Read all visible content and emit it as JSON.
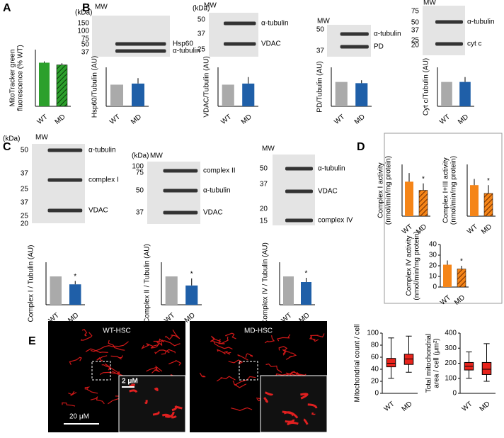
{
  "panel_labels": [
    "A",
    "B",
    "C",
    "D",
    "E"
  ],
  "chart_data": [
    {
      "type": "bar",
      "ylabel": [
        "MitoTracker green",
        "fluorescence (% WT)"
      ],
      "categories": [
        "WT",
        "MD"
      ],
      "values": [
        100,
        95
      ],
      "errors": [
        3,
        4
      ],
      "colors": [
        "#2ca02c",
        "#2ca02c"
      ],
      "hatch": [
        false,
        true
      ],
      "ylim": [
        0,
        130
      ]
    },
    {
      "type": "bar",
      "ylabel": [
        "Hsp60/Tubulin (AU)"
      ],
      "categories": [
        "WT",
        "MD"
      ],
      "values": [
        1,
        1.05
      ],
      "errors": [
        0,
        0.25
      ],
      "colors": [
        "#aaaaaa",
        "#1f5fa8"
      ],
      "hatch": [
        false,
        false
      ],
      "ylim": [
        0,
        1.8
      ]
    },
    {
      "type": "bar",
      "ylabel": [
        "VDAC/Tubulin (AU)"
      ],
      "categories": [
        "WT",
        "MD"
      ],
      "values": [
        1,
        1.05
      ],
      "errors": [
        0,
        0.3
      ],
      "colors": [
        "#aaaaaa",
        "#1f5fa8"
      ],
      "hatch": [
        false,
        false
      ],
      "ylim": [
        0,
        1.8
      ]
    },
    {
      "type": "bar",
      "ylabel": [
        "PD/Tubulin (AU)"
      ],
      "categories": [
        "WT",
        "MD"
      ],
      "values": [
        1,
        0.95
      ],
      "errors": [
        0,
        0.12
      ],
      "colors": [
        "#aaaaaa",
        "#1f5fa8"
      ],
      "hatch": [
        false,
        false
      ],
      "ylim": [
        0,
        1.6
      ]
    },
    {
      "type": "bar",
      "ylabel": [
        "Cyt c/Tubulin (AU)"
      ],
      "categories": [
        "WT",
        "MD"
      ],
      "values": [
        1,
        1.0
      ],
      "errors": [
        0,
        0.2
      ],
      "colors": [
        "#aaaaaa",
        "#1f5fa8"
      ],
      "hatch": [
        false,
        false
      ],
      "ylim": [
        0,
        1.6
      ]
    },
    {
      "type": "bar",
      "ylabel": [
        "Complex I / Tubulin (AU)"
      ],
      "categories": [
        "WT",
        "MD"
      ],
      "values": [
        1,
        0.72
      ],
      "errors": [
        0,
        0.12
      ],
      "colors": [
        "#aaaaaa",
        "#1f5fa8"
      ],
      "hatch": [
        false,
        false
      ],
      "significance": [
        null,
        "*"
      ],
      "ylim": [
        0,
        1.5
      ]
    },
    {
      "type": "bar",
      "ylabel": [
        "Complex II / Tubulin (AU)"
      ],
      "categories": [
        "WT",
        "MD"
      ],
      "values": [
        1,
        0.68
      ],
      "errors": [
        0,
        0.25
      ],
      "colors": [
        "#aaaaaa",
        "#1f5fa8"
      ],
      "hatch": [
        false,
        false
      ],
      "significance": [
        null,
        "*"
      ],
      "ylim": [
        0,
        1.5
      ]
    },
    {
      "type": "bar",
      "ylabel": [
        "Complex IV / Tubulin (AU)"
      ],
      "categories": [
        "WT",
        "MD"
      ],
      "values": [
        1,
        0.8
      ],
      "errors": [
        0,
        0.15
      ],
      "colors": [
        "#aaaaaa",
        "#1f5fa8"
      ],
      "hatch": [
        false,
        false
      ],
      "significance": [
        null,
        "*"
      ],
      "ylim": [
        0,
        1.5
      ]
    },
    {
      "type": "bar",
      "ylabel": [
        "Complex I activity",
        "(nmol/min/mg protein)"
      ],
      "categories": [
        "WT",
        "MD"
      ],
      "values": [
        40,
        30
      ],
      "errors": [
        10,
        8
      ],
      "colors": [
        "#f58518",
        "#f58518"
      ],
      "hatch": [
        false,
        true
      ],
      "significance": [
        null,
        "*"
      ],
      "ylim": [
        0,
        60
      ]
    },
    {
      "type": "bar",
      "ylabel": [
        "Complex I+III activity",
        "(nmol/min/mg protein)"
      ],
      "categories": [
        "WT",
        "MD"
      ],
      "values": [
        15,
        11
      ],
      "errors": [
        3,
        4
      ],
      "colors": [
        "#f58518",
        "#f58518"
      ],
      "hatch": [
        false,
        true
      ],
      "significance": [
        null,
        "*"
      ],
      "ylim": [
        0,
        25
      ]
    },
    {
      "type": "bar",
      "ylabel": [
        "Complex IV activity",
        "(nmol/min/mg protein)"
      ],
      "categories": [
        "WT",
        "MD"
      ],
      "values": [
        21,
        17
      ],
      "errors": [
        4,
        3
      ],
      "colors": [
        "#f58518",
        "#f58518"
      ],
      "hatch": [
        false,
        true
      ],
      "significance": [
        null,
        "*"
      ],
      "ylim": [
        0,
        40
      ],
      "yticks": [
        0,
        10,
        20,
        30,
        40
      ]
    },
    {
      "type": "box",
      "ylabel": [
        "Mitochondrial count / cell"
      ],
      "categories": [
        "WT",
        "MD"
      ],
      "boxes": [
        {
          "whislo": 25,
          "q1": 44,
          "med": 50,
          "q3": 58,
          "whishi": 92
        },
        {
          "whislo": 35,
          "q1": 48,
          "med": 57,
          "q3": 65,
          "whishi": 95
        }
      ],
      "color": "#e8241c",
      "ylim": [
        0,
        100
      ],
      "yticks": [
        0,
        20,
        40,
        60,
        80,
        100
      ]
    },
    {
      "type": "box",
      "ylabel": [
        "Total mitochondrial",
        "area / cell (μm²)"
      ],
      "categories": [
        "WT",
        "MD"
      ],
      "boxes": [
        {
          "whislo": 100,
          "q1": 155,
          "med": 180,
          "q3": 205,
          "whishi": 275
        },
        {
          "whislo": 80,
          "q1": 125,
          "med": 160,
          "q3": 205,
          "whishi": 330
        }
      ],
      "color": "#e8241c",
      "ylim": [
        0,
        400
      ],
      "yticks": [
        0,
        100,
        200,
        300,
        400
      ]
    }
  ],
  "blots": [
    {
      "header": "(kDa)",
      "mw": "MW",
      "markers": [
        "150",
        "100",
        "75",
        "50",
        "37"
      ],
      "bands": [
        "Hsp60",
        "α-tubulin"
      ]
    },
    {
      "header": "(kDa)",
      "mw": "MW",
      "markers": [
        "50",
        "37",
        "25"
      ],
      "bands": [
        "α-tubulin",
        "VDAC"
      ]
    },
    {
      "mw": "MW",
      "markers": [
        "50",
        "37"
      ],
      "bands": [
        "α-tubulin",
        "PD"
      ]
    },
    {
      "mw": "MW",
      "markers": [
        "75",
        "50",
        "37",
        "25",
        "20"
      ],
      "bands": [
        "α-tubulin",
        "cyt c"
      ]
    },
    {
      "header": "(kDa)",
      "mw": "MW",
      "markers": [
        "50",
        "37",
        "25",
        "37",
        "25",
        "20"
      ],
      "bands": [
        "α-tubulin",
        "complex I",
        "VDAC"
      ]
    },
    {
      "header": "(kDa)",
      "mw": "MW",
      "markers": [
        "100",
        "75",
        "50",
        "37"
      ],
      "bands": [
        "complex II",
        "α-tubulin",
        "VDAC"
      ]
    },
    {
      "mw": "MW",
      "markers": [
        "50",
        "37",
        "20",
        "15"
      ],
      "bands": [
        "α-tubulin",
        "VDAC",
        "complex IV"
      ]
    }
  ],
  "micrographs": [
    "WT-HSC",
    "MD-HSC"
  ],
  "scale_bars": [
    "2 μM",
    "20 μM"
  ]
}
